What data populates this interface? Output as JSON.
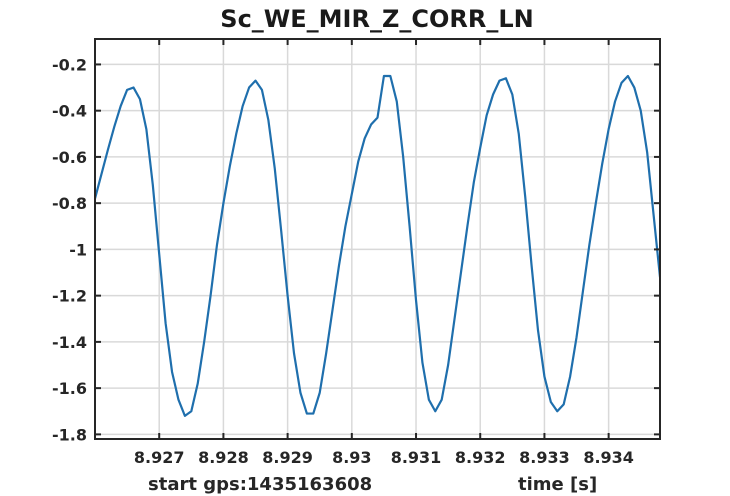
{
  "chart_data": {
    "type": "line",
    "title": "Sc_WE_MIR_Z_CORR_LN",
    "xlabel_left": "start gps:1435163608",
    "xlabel_right": "time [s]",
    "xlim": [
      8.926,
      8.9348
    ],
    "ylim": [
      -1.82,
      -0.09
    ],
    "xticks": [
      8.927,
      8.928,
      8.929,
      8.93,
      8.931,
      8.932,
      8.933,
      8.934
    ],
    "xtick_labels": [
      "8.927",
      "8.928",
      "8.929",
      "8.93",
      "8.931",
      "8.932",
      "8.933",
      "8.934"
    ],
    "yticks": [
      -0.2,
      -0.4,
      -0.6,
      -0.8,
      -1.0,
      -1.2,
      -1.4,
      -1.6,
      -1.8
    ],
    "ytick_labels": [
      "-0.2",
      "-0.4",
      "-0.6",
      "-0.8",
      "-1",
      "-1.2",
      "-1.4",
      "-1.6",
      "-1.8"
    ],
    "grid": true,
    "colors": {
      "line": "#1f6fad",
      "grid": "#d9d9d9",
      "axes": "#262626",
      "background": "#ffffff"
    },
    "series": [
      {
        "x": [
          8.926,
          8.9262,
          8.9263,
          8.9264,
          8.9265,
          8.9266,
          8.9267,
          8.9268,
          8.9269,
          8.927,
          8.9271,
          8.9272,
          8.9273,
          8.9274,
          8.9275,
          8.9276,
          8.9277,
          8.9278,
          8.9279,
          8.928,
          8.9281,
          8.9282,
          8.9283,
          8.9284,
          8.9285,
          8.9286,
          8.9287,
          8.9288,
          8.9289,
          8.929,
          8.9291,
          8.9292,
          8.9293,
          8.9294,
          8.9295,
          8.9296,
          8.9297,
          8.9298,
          8.9299,
          8.93,
          8.9301,
          8.9302,
          8.9303,
          8.9304,
          8.9305,
          8.9306,
          8.9307,
          8.9308,
          8.9309,
          8.931,
          8.9311,
          8.9312,
          8.9313,
          8.9314,
          8.9315,
          8.9316,
          8.9317,
          8.9318,
          8.9319,
          8.932,
          8.9321,
          8.9322,
          8.9323,
          8.9324,
          8.9325,
          8.9326,
          8.9327,
          8.9328,
          8.9329,
          8.933,
          8.9331,
          8.9332,
          8.9333,
          8.9334,
          8.9335,
          8.9336,
          8.9337,
          8.9338,
          8.9339,
          8.934,
          8.9341,
          8.9342,
          8.9343,
          8.9344,
          8.9345,
          8.9346,
          8.9347,
          8.9348
        ],
        "y": [
          -0.78,
          -0.57,
          -0.47,
          -0.38,
          -0.31,
          -0.3,
          -0.35,
          -0.48,
          -0.72,
          -1.02,
          -1.32,
          -1.53,
          -1.65,
          -1.72,
          -1.7,
          -1.58,
          -1.4,
          -1.2,
          -0.98,
          -0.8,
          -0.64,
          -0.5,
          -0.38,
          -0.3,
          -0.27,
          -0.31,
          -0.44,
          -0.65,
          -0.92,
          -1.2,
          -1.45,
          -1.62,
          -1.71,
          -1.71,
          -1.62,
          -1.45,
          -1.26,
          -1.07,
          -0.9,
          -0.76,
          -0.62,
          -0.52,
          -0.46,
          -0.43,
          -0.25,
          -0.25,
          -0.36,
          -0.6,
          -0.9,
          -1.22,
          -1.49,
          -1.65,
          -1.7,
          -1.65,
          -1.5,
          -1.3,
          -1.1,
          -0.9,
          -0.71,
          -0.56,
          -0.42,
          -0.33,
          -0.27,
          -0.26,
          -0.33,
          -0.5,
          -0.77,
          -1.07,
          -1.35,
          -1.55,
          -1.66,
          -1.7,
          -1.67,
          -1.55,
          -1.38,
          -1.18,
          -0.98,
          -0.8,
          -0.63,
          -0.48,
          -0.36,
          -0.28,
          -0.25,
          -0.3,
          -0.4,
          -0.58,
          -0.85,
          -1.12
        ]
      }
    ]
  }
}
